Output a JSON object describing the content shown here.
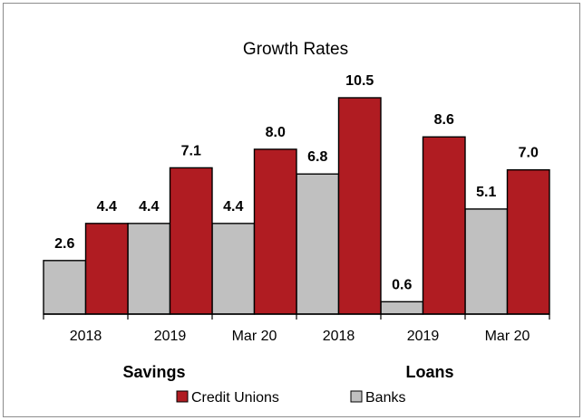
{
  "chart_data": {
    "type": "bar",
    "title": "Growth Rates",
    "categories": [
      "2018",
      "2019",
      "Mar 20",
      "2018",
      "2019",
      "Mar 20"
    ],
    "groups": [
      {
        "label": "Savings",
        "categories": [
          "2018",
          "2019",
          "Mar 20"
        ]
      },
      {
        "label": "Loans",
        "categories": [
          "2018",
          "2019",
          "Mar 20"
        ]
      }
    ],
    "series": [
      {
        "name": "Banks",
        "color": "#c0c0c0",
        "values": [
          2.6,
          4.4,
          4.4,
          6.8,
          0.6,
          5.1
        ]
      },
      {
        "name": "Credit Unions",
        "color": "#b01c22",
        "values": [
          4.4,
          7.1,
          8.0,
          10.5,
          8.6,
          7.0
        ]
      }
    ],
    "legend_order": [
      "Credit Unions",
      "Banks"
    ],
    "legend_position": "bottom",
    "ylim": [
      0,
      12
    ],
    "value_labels": true,
    "grid": false,
    "xlabel": "",
    "ylabel": ""
  }
}
